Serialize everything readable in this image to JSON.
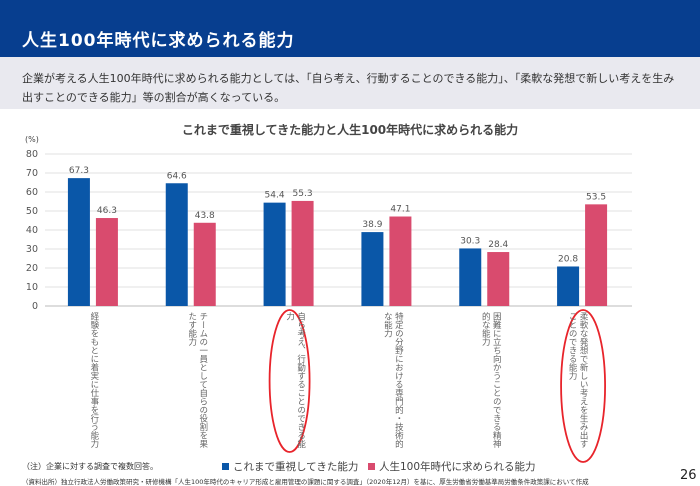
{
  "header": {
    "title": "人生100年時代に求められる能力"
  },
  "description": "企業が考える人生100年時代に求められる能力としては、「自ら考え、行動することのできる能力」、「柔軟な発想で新しい考えを生み出すことのできる能力」等の割合が高くなっている。",
  "chart_data": {
    "type": "bar",
    "title": "これまで重視してきた能力と人生100年時代に求められる能力",
    "ylabel": "(%)",
    "ylim": [
      0,
      80
    ],
    "yticks": [
      0,
      10,
      20,
      30,
      40,
      50,
      60,
      70,
      80
    ],
    "grid": true,
    "legend_position": "bottom",
    "categories": [
      "経験をもとに着実に仕事を行う能力",
      "チームの一員として自らの役割を果たす能力",
      "自ら考え、行動することのできる能力",
      "特定の分野における専門的・技術的な能力",
      "困難に立ち向かうことのできる精神的な能力",
      "柔軟な発想で新しい考えを生み出すことのできる能力"
    ],
    "highlighted_categories": [
      2,
      5
    ],
    "series": [
      {
        "name": "これまで重視してきた能力",
        "color": "#0a57a8",
        "values": [
          67.3,
          64.6,
          54.4,
          38.9,
          30.3,
          20.8
        ]
      },
      {
        "name": "人生100年時代に求められる能力",
        "color": "#d94b6e",
        "values": [
          46.3,
          43.8,
          55.3,
          47.1,
          28.4,
          53.5
        ]
      }
    ]
  },
  "highlight_color": "#e8242b",
  "note": "（注）企業に対する調査で複数回答。",
  "source": "（資料出所）独立行政法人労働政策研究・研修機構「人生100年時代のキャリア形成と雇用管理の課題に関する調査」（2020年12月）を基に、厚生労働省労働基準局労働条件政策課において作成",
  "page_number": "26"
}
